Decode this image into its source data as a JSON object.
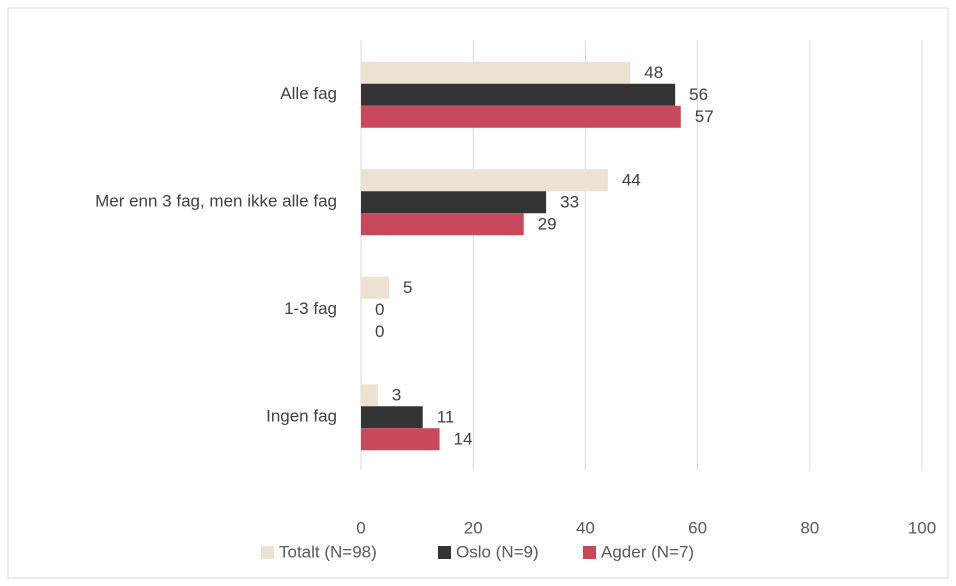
{
  "chart_data": {
    "type": "hbar",
    "categories": [
      "Alle fag",
      "Mer enn 3 fag, men ikke alle fag",
      "1-3 fag",
      "Ingen fag"
    ],
    "series": [
      {
        "name": "Totalt (N=98)",
        "color": "#ede1d1",
        "values": [
          48,
          44,
          5,
          3
        ]
      },
      {
        "name": "Oslo (N=9)",
        "color": "#333333",
        "values": [
          56,
          33,
          0,
          11
        ]
      },
      {
        "name": "Agder (N=7)",
        "color": "#c8495a",
        "values": [
          57,
          29,
          0,
          14
        ]
      }
    ],
    "xlim": [
      0,
      100
    ],
    "xticks": [
      0,
      20,
      40,
      60,
      80,
      100
    ],
    "grid": true,
    "legend": "bottom"
  }
}
